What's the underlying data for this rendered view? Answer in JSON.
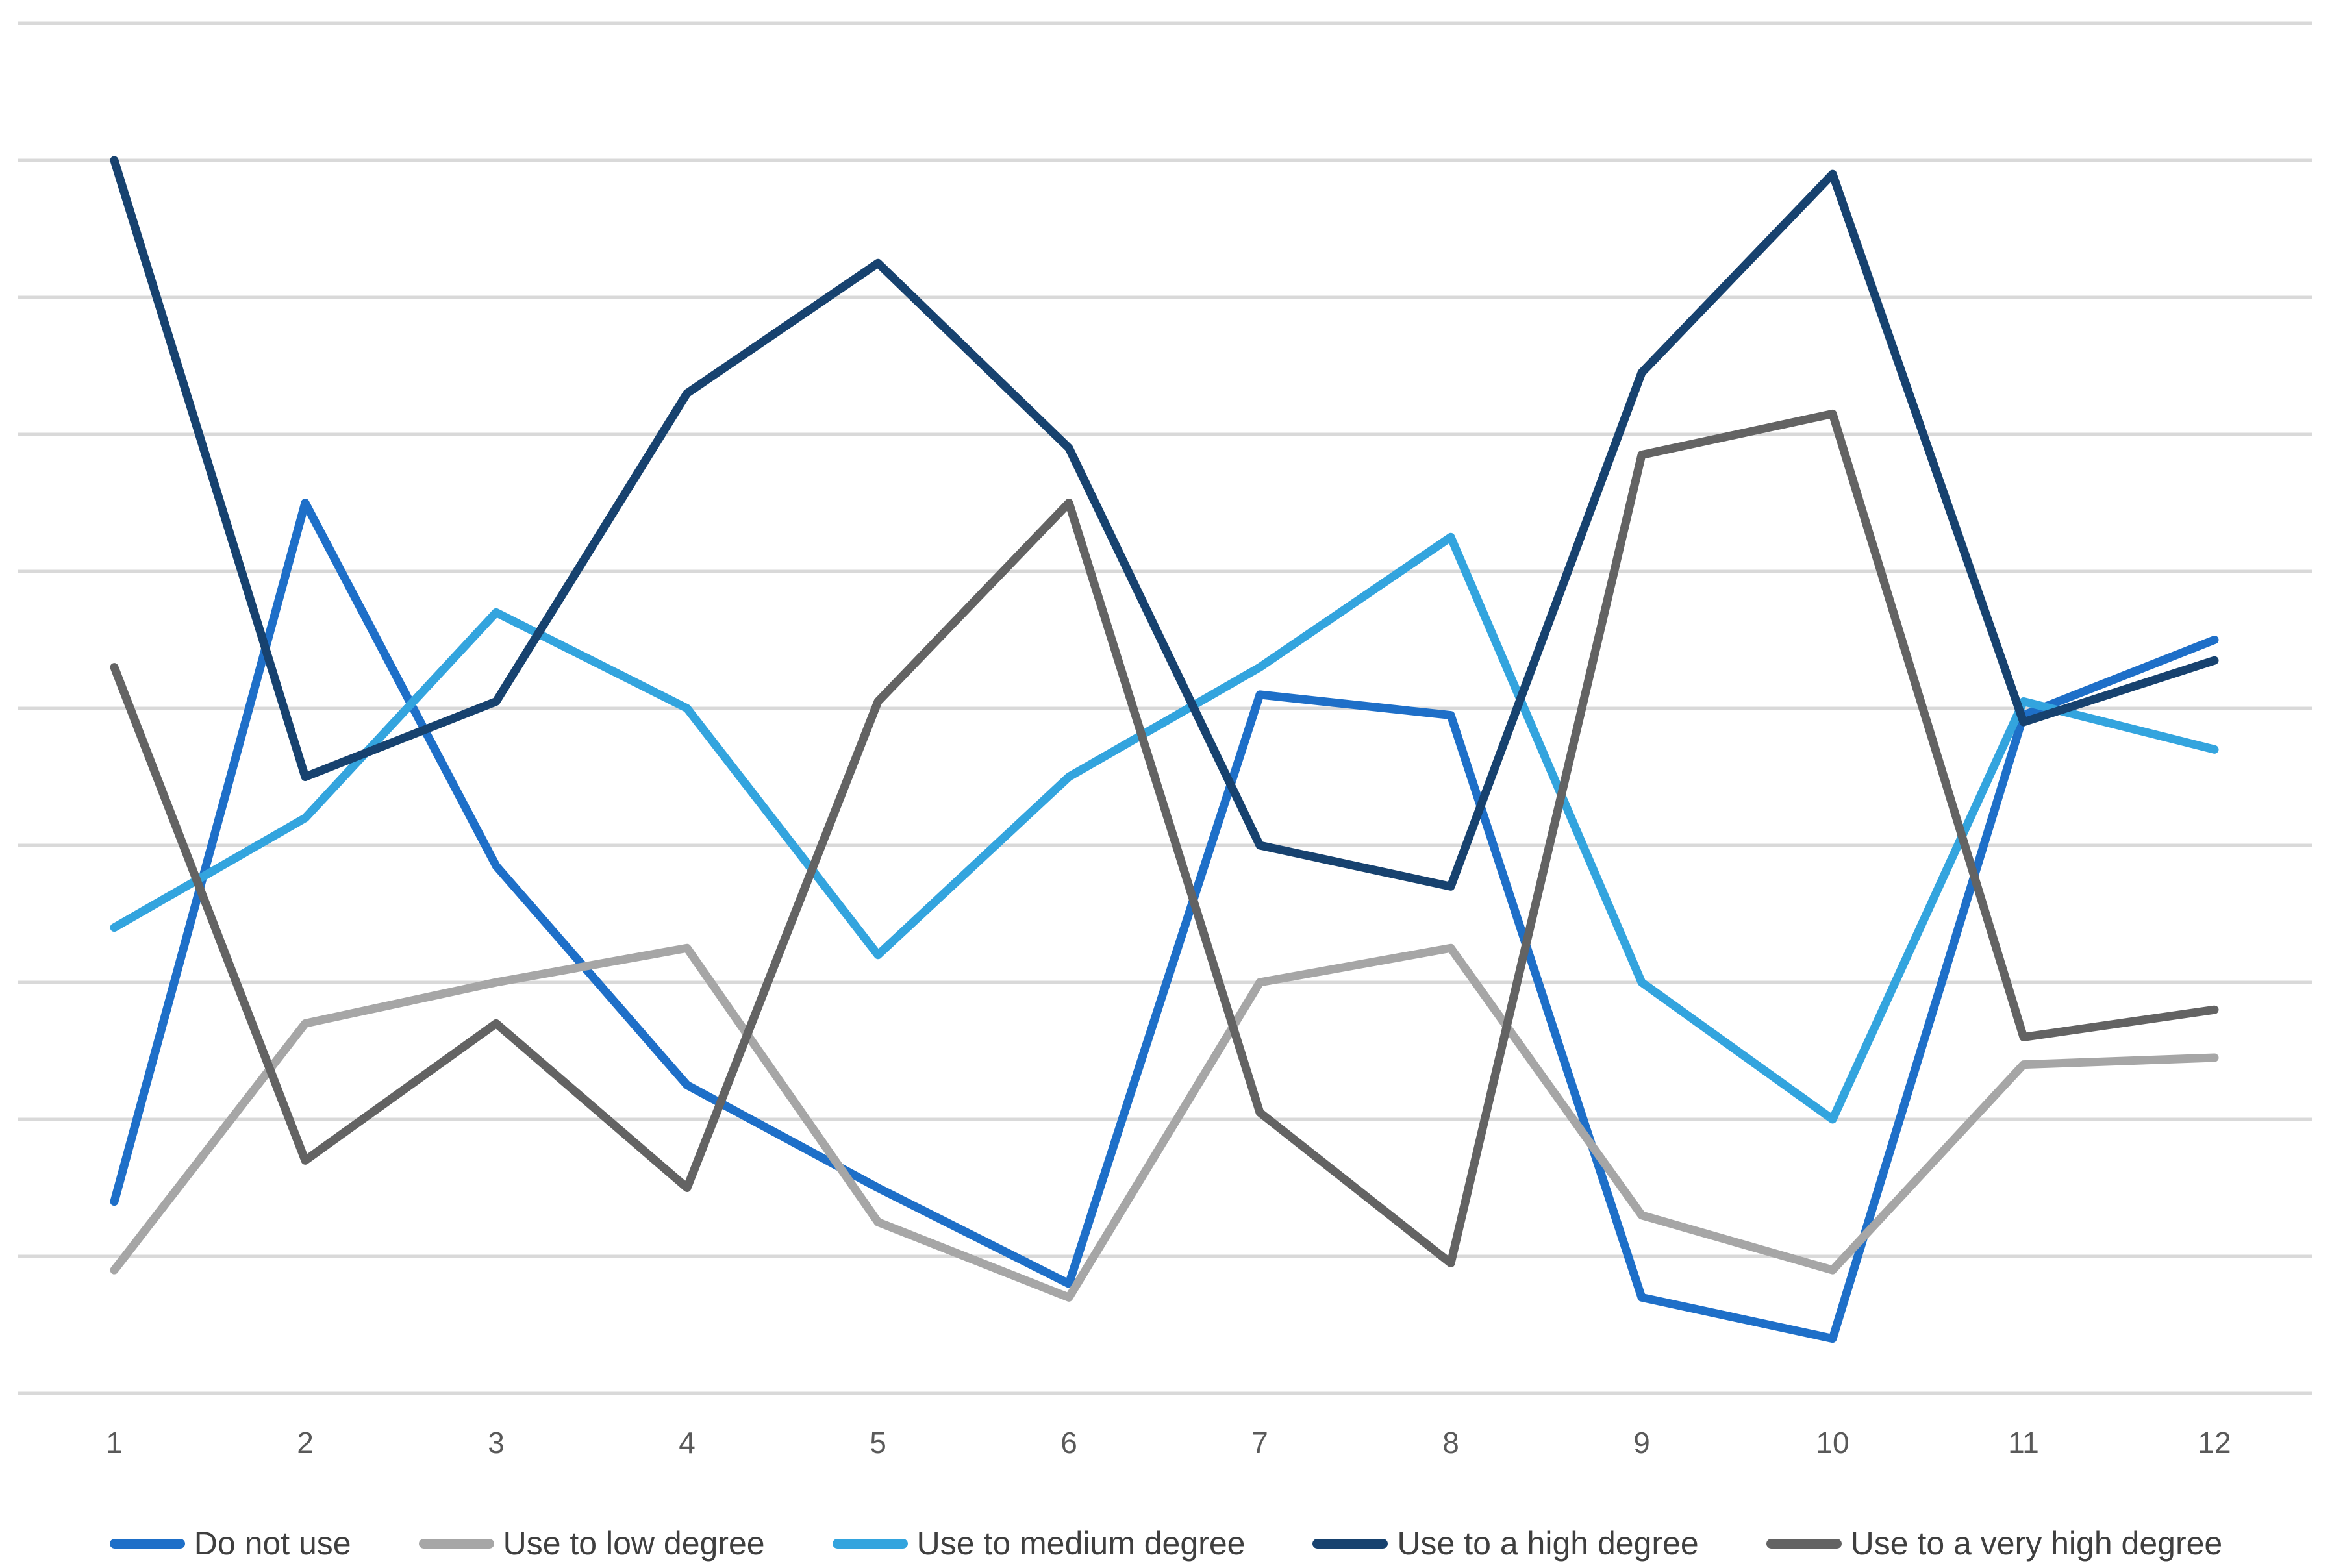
{
  "chart_data": {
    "type": "line",
    "title": "",
    "xlabel": "",
    "ylabel": "",
    "x": [
      1,
      2,
      3,
      4,
      5,
      6,
      7,
      8,
      9,
      10,
      11,
      12
    ],
    "ylim": [
      0,
      10
    ],
    "gridline_step": 1,
    "grid": "horizontal-only",
    "y_axis_labels_visible": false,
    "markers": false,
    "legend_position": "bottom",
    "series": [
      {
        "name": "Do not use",
        "color": "#1E6FC8",
        "values": [
          1.4,
          6.5,
          3.85,
          2.25,
          1.5,
          0.8,
          5.1,
          4.95,
          0.7,
          0.4,
          4.95,
          5.5
        ]
      },
      {
        "name": "Use to low degree",
        "color": "#A6A6A6",
        "values": [
          0.9,
          2.7,
          3.0,
          3.25,
          1.25,
          0.7,
          3.0,
          3.25,
          1.3,
          0.9,
          2.4,
          2.45
        ]
      },
      {
        "name": "Use to medium degree",
        "color": "#33A4DE",
        "values": [
          3.4,
          4.2,
          5.7,
          5.0,
          3.2,
          4.5,
          5.3,
          6.25,
          3.0,
          2.0,
          5.05,
          4.7
        ]
      },
      {
        "name": "Use to a high degree",
        "color": "#17426F",
        "values": [
          9.0,
          4.5,
          5.05,
          7.3,
          8.25,
          6.9,
          4.0,
          3.7,
          7.45,
          8.9,
          4.9,
          5.35
        ]
      },
      {
        "name": "Use to a very high degree",
        "color": "#636363",
        "values": [
          5.3,
          1.7,
          2.7,
          1.5,
          5.05,
          6.5,
          2.05,
          0.95,
          6.85,
          7.15,
          2.6,
          2.8
        ]
      }
    ],
    "colors": {
      "background": "#FFFFFF",
      "gridline": "#D9D9D9",
      "tick_label": "#595959",
      "legend_text": "#3F3F3F"
    }
  }
}
